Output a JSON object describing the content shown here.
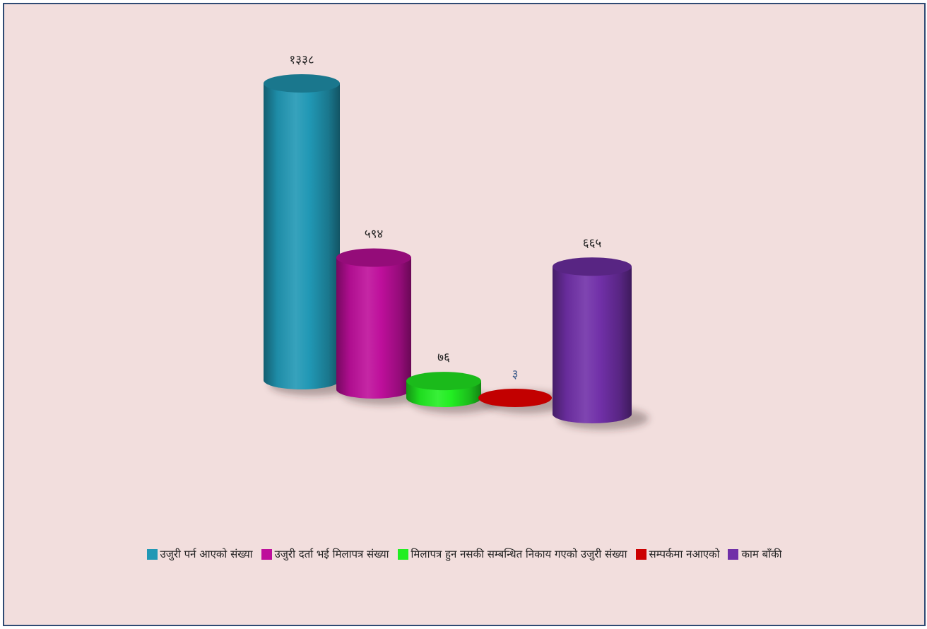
{
  "chart_data": {
    "type": "bar",
    "style": "3d-cylinder",
    "categories": [
      "उजुरी पर्न आएको संख्या",
      "उजुरी दर्ता भई मिलापत्र संख्या",
      "मिलापत्र हुन नसकी सम्बन्धित निकाय गएको उजुरी संख्या",
      "सम्पर्कमा नआएको",
      "काम बाँकी"
    ],
    "values": [
      1338,
      594,
      76,
      3,
      665
    ],
    "value_labels": [
      "१३३८",
      "५९४",
      "७६",
      "३",
      "६६५"
    ],
    "colors": [
      "#2198b5",
      "#be0f9b",
      "#22ee22",
      "#cc0000",
      "#7130a8"
    ],
    "label_colors": [
      "#222222",
      "#222222",
      "#222222",
      "#3a5a8a",
      "#222222"
    ],
    "grid": false,
    "legend_position": "bottom"
  }
}
